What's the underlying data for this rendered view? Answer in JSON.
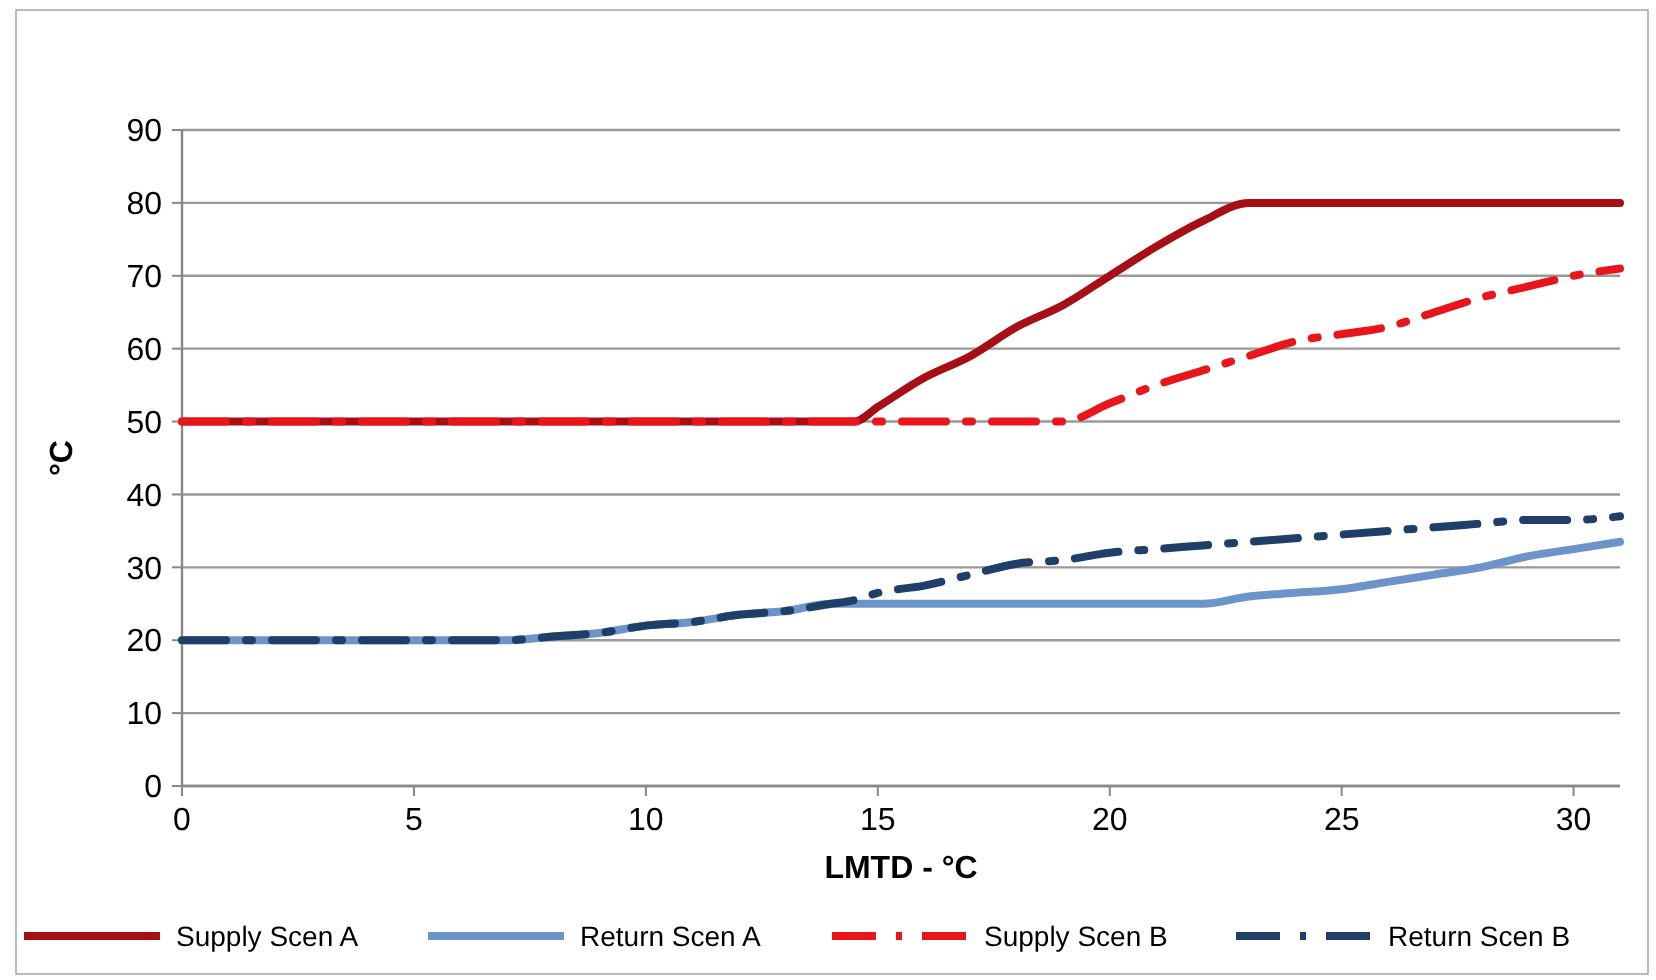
{
  "chart_data": {
    "type": "line",
    "xlabel": "LMTD - °C",
    "ylabel": "°C",
    "x": [
      0,
      5,
      7,
      8,
      9,
      10,
      11,
      12,
      13,
      14,
      14.5,
      15,
      16,
      17,
      18,
      19,
      20,
      21,
      22,
      23,
      24,
      25,
      26,
      27,
      28,
      29,
      30,
      31
    ],
    "series": [
      {
        "name": "Supply Scen A",
        "color": "#a50f15",
        "line_style": "solid",
        "values": [
          50,
          50,
          50,
          50,
          50,
          50,
          50,
          50,
          50,
          50,
          50,
          52,
          56,
          59,
          63,
          66,
          70,
          74,
          77.5,
          80,
          80,
          80,
          80,
          80,
          80,
          80,
          80,
          80
        ]
      },
      {
        "name": "Return Scen A",
        "color": "#6b95c9",
        "line_style": "solid",
        "values": [
          20,
          20,
          20,
          20.5,
          21,
          22,
          22.5,
          23.5,
          24,
          25,
          25,
          25,
          25,
          25,
          25,
          25,
          25,
          25,
          25,
          26,
          26.5,
          27,
          28,
          29,
          30,
          31.5,
          32.5,
          33.5
        ]
      },
      {
        "name": "Supply Scen B",
        "color": "#e8161b",
        "line_style": "dashed",
        "values": [
          50,
          50,
          50,
          50,
          50,
          50,
          50,
          50,
          50,
          50,
          50,
          50,
          50,
          50,
          50,
          50,
          52.5,
          55,
          57,
          59,
          61,
          62,
          63,
          65,
          67,
          68.5,
          70,
          71
        ]
      },
      {
        "name": "Return Scen B",
        "color": "#1f3f68",
        "line_style": "dashed",
        "values": [
          20,
          20,
          20,
          20.5,
          21,
          22,
          22.5,
          23.5,
          24,
          25,
          25.5,
          26.5,
          27.5,
          29,
          30.5,
          31,
          32,
          32.5,
          33,
          33.5,
          34,
          34.5,
          35,
          35.5,
          36,
          36.5,
          36.5,
          37
        ]
      }
    ],
    "xlim": [
      0,
      31
    ],
    "xticks": [
      0,
      5,
      10,
      15,
      20,
      25,
      30
    ],
    "ylim": [
      0,
      90
    ],
    "yticks": [
      0,
      10,
      20,
      30,
      40,
      50,
      60,
      70,
      80,
      90
    ],
    "grid": "y",
    "legend": "bottom",
    "marker": "none"
  }
}
